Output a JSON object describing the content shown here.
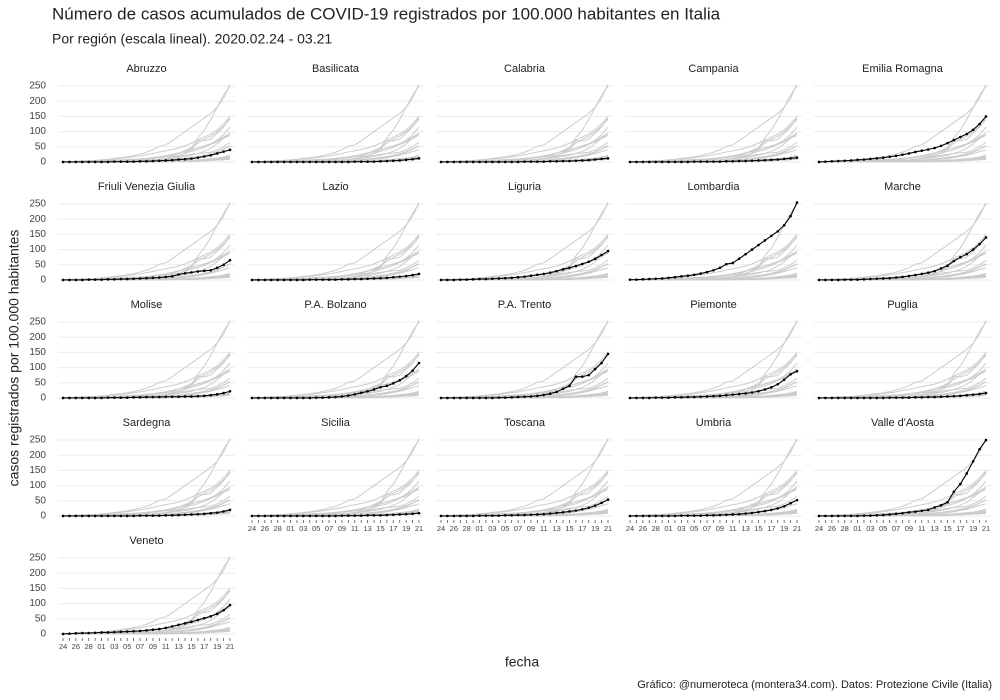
{
  "chart_data": {
    "type": "line",
    "title": "Número de casos acumulados de COVID-19 registrados por 100.000 habitantes en Italia",
    "subtitle": "Por región (escala lineal). 2020.02.24 - 03.21",
    "xlabel": "fecha",
    "ylabel": "casos registrados por 100.000 habitantes",
    "caption": "Gráfico: @numeroteca (montera34.com). Datos: Protezione Civile (Italia)",
    "categories": [
      "24",
      null,
      "26",
      null,
      "28",
      null,
      "01",
      null,
      "03",
      null,
      "05",
      null,
      "07",
      null,
      "09",
      null,
      "11",
      null,
      "13",
      null,
      "15",
      null,
      "17",
      null,
      "19",
      null,
      "21"
    ],
    "ylim": [
      -10,
      260
    ],
    "yticks": [
      0,
      50,
      100,
      150,
      200,
      250
    ],
    "grid": true,
    "background_color": "#cccccc",
    "highlight_color": "#000000",
    "series": [
      {
        "name": "Abruzzo",
        "values": [
          0,
          0,
          0,
          0,
          0,
          0,
          0,
          0,
          1,
          1,
          1,
          1,
          2,
          2,
          3,
          4,
          5,
          6,
          8,
          9,
          11,
          14,
          18,
          22,
          28,
          34,
          40
        ]
      },
      {
        "name": "Basilicata",
        "values": [
          0,
          0,
          0,
          0,
          0,
          0,
          0,
          0,
          0,
          0,
          0,
          0,
          0,
          0,
          0,
          0,
          1,
          1,
          1,
          1,
          2,
          3,
          4,
          5,
          7,
          9,
          12
        ]
      },
      {
        "name": "Calabria",
        "values": [
          0,
          0,
          0,
          0,
          0,
          0,
          0,
          0,
          0,
          0,
          0,
          0,
          0,
          1,
          1,
          1,
          1,
          2,
          2,
          3,
          3,
          4,
          5,
          6,
          8,
          10,
          12
        ]
      },
      {
        "name": "Campania",
        "values": [
          0,
          0,
          0,
          0,
          0,
          0,
          0,
          0,
          0,
          0,
          1,
          1,
          1,
          1,
          1,
          2,
          2,
          3,
          3,
          4,
          5,
          6,
          7,
          8,
          10,
          12,
          14
        ]
      },
      {
        "name": "Emilia Romagna",
        "values": [
          0,
          1,
          2,
          3,
          4,
          5,
          7,
          8,
          10,
          12,
          14,
          17,
          20,
          24,
          28,
          33,
          37,
          41,
          46,
          53,
          62,
          72,
          82,
          92,
          106,
          125,
          150
        ]
      },
      {
        "name": "Friuli Venezia Giulia",
        "values": [
          0,
          0,
          0,
          0,
          1,
          1,
          1,
          2,
          2,
          3,
          3,
          4,
          5,
          6,
          7,
          8,
          10,
          12,
          18,
          22,
          25,
          28,
          30,
          32,
          40,
          50,
          65
        ]
      },
      {
        "name": "Lazio",
        "values": [
          0,
          0,
          0,
          0,
          0,
          0,
          0,
          0,
          0,
          1,
          1,
          1,
          1,
          1,
          2,
          2,
          3,
          3,
          4,
          5,
          6,
          7,
          9,
          11,
          13,
          16,
          20
        ]
      },
      {
        "name": "Liguria",
        "values": [
          0,
          0,
          0,
          1,
          1,
          2,
          3,
          3,
          4,
          5,
          6,
          7,
          9,
          11,
          14,
          17,
          20,
          24,
          29,
          35,
          40,
          46,
          53,
          60,
          70,
          82,
          95
        ]
      },
      {
        "name": "Lombardia",
        "values": [
          1,
          1,
          2,
          3,
          4,
          5,
          7,
          9,
          12,
          14,
          17,
          21,
          26,
          32,
          40,
          52,
          56,
          70,
          85,
          100,
          115,
          130,
          145,
          160,
          180,
          210,
          255
        ]
      },
      {
        "name": "Marche",
        "values": [
          0,
          0,
          0,
          0,
          1,
          1,
          1,
          2,
          3,
          4,
          5,
          6,
          8,
          10,
          13,
          16,
          20,
          24,
          29,
          38,
          47,
          62,
          75,
          85,
          100,
          118,
          140
        ]
      },
      {
        "name": "Molise",
        "values": [
          0,
          0,
          0,
          0,
          0,
          0,
          0,
          1,
          1,
          1,
          1,
          2,
          2,
          3,
          3,
          3,
          4,
          4,
          4,
          5,
          5,
          6,
          7,
          9,
          12,
          16,
          22
        ]
      },
      {
        "name": "P.A. Bolzano",
        "values": [
          0,
          0,
          0,
          0,
          0,
          0,
          0,
          0,
          0,
          0,
          1,
          1,
          2,
          3,
          5,
          8,
          12,
          17,
          22,
          28,
          35,
          40,
          48,
          58,
          72,
          90,
          115
        ]
      },
      {
        "name": "P.A. Trento",
        "values": [
          0,
          0,
          0,
          0,
          0,
          0,
          0,
          0,
          0,
          1,
          1,
          2,
          3,
          4,
          5,
          7,
          10,
          14,
          20,
          30,
          40,
          70,
          70,
          75,
          95,
          115,
          145
        ]
      },
      {
        "name": "Piemonte",
        "values": [
          0,
          0,
          0,
          0,
          1,
          1,
          1,
          2,
          2,
          3,
          3,
          4,
          5,
          6,
          7,
          9,
          11,
          13,
          15,
          18,
          22,
          28,
          35,
          45,
          60,
          78,
          88
        ]
      },
      {
        "name": "Puglia",
        "values": [
          0,
          0,
          0,
          0,
          0,
          0,
          0,
          0,
          0,
          0,
          0,
          1,
          1,
          1,
          1,
          2,
          2,
          3,
          3,
          4,
          5,
          6,
          7,
          9,
          11,
          13,
          16
        ]
      },
      {
        "name": "Sardegna",
        "values": [
          0,
          0,
          0,
          0,
          0,
          0,
          0,
          0,
          0,
          0,
          0,
          0,
          1,
          1,
          1,
          1,
          2,
          2,
          3,
          4,
          5,
          6,
          7,
          9,
          11,
          15,
          20
        ]
      },
      {
        "name": "Sicilia",
        "values": [
          0,
          0,
          0,
          0,
          0,
          0,
          0,
          0,
          0,
          0,
          0,
          0,
          0,
          0,
          1,
          1,
          1,
          1,
          2,
          2,
          2,
          3,
          4,
          5,
          6,
          7,
          9
        ]
      },
      {
        "name": "Toscana",
        "values": [
          0,
          0,
          0,
          0,
          0,
          0,
          1,
          1,
          1,
          1,
          2,
          2,
          3,
          3,
          4,
          5,
          6,
          8,
          10,
          12,
          15,
          18,
          22,
          27,
          34,
          43,
          54
        ]
      },
      {
        "name": "Umbria",
        "values": [
          0,
          0,
          0,
          0,
          0,
          0,
          0,
          0,
          1,
          1,
          1,
          1,
          2,
          2,
          3,
          4,
          5,
          6,
          8,
          10,
          13,
          16,
          20,
          25,
          32,
          42,
          52
        ]
      },
      {
        "name": "Valle d'Aosta",
        "values": [
          0,
          0,
          0,
          0,
          0,
          0,
          0,
          1,
          1,
          2,
          3,
          5,
          7,
          9,
          12,
          14,
          17,
          20,
          28,
          35,
          45,
          80,
          105,
          140,
          180,
          220,
          250
        ]
      },
      {
        "name": "Veneto",
        "values": [
          0,
          1,
          2,
          3,
          3,
          4,
          5,
          5,
          6,
          7,
          8,
          9,
          10,
          12,
          14,
          16,
          20,
          25,
          30,
          35,
          40,
          46,
          52,
          58,
          66,
          78,
          95
        ]
      }
    ]
  }
}
